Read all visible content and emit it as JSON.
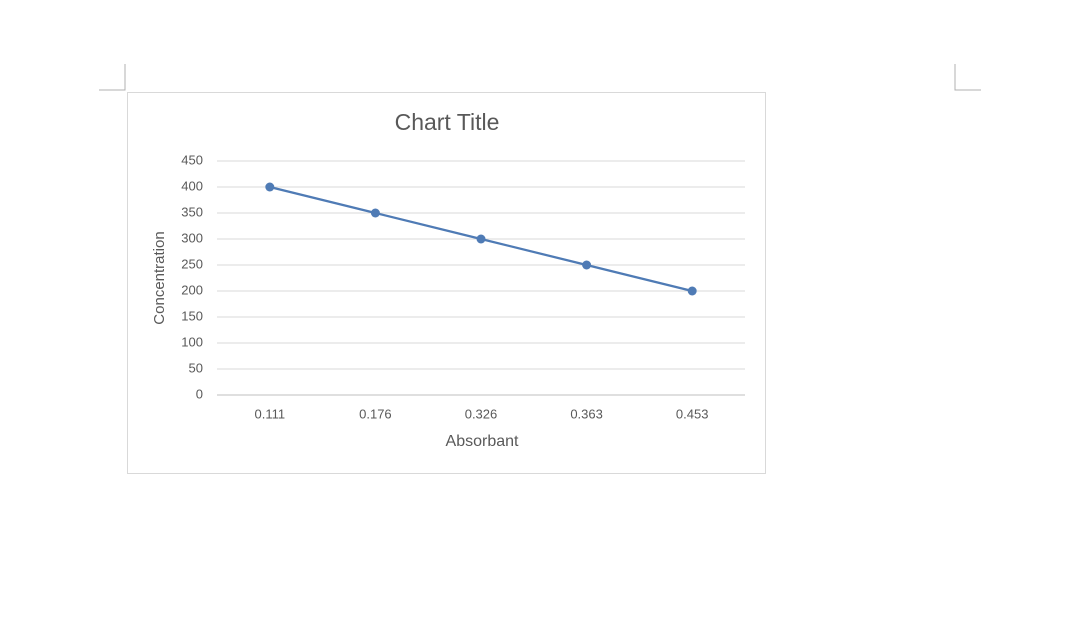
{
  "chart_data": {
    "type": "line",
    "title": "Chart Title",
    "x_label": "Absorbant",
    "y_label": "Concentration",
    "categories": [
      "0.111",
      "0.176",
      "0.326",
      "0.363",
      "0.453"
    ],
    "values": [
      400,
      350,
      300,
      250,
      200
    ],
    "color": "#4f7bb5",
    "ylim": [
      0,
      450
    ],
    "yticks": [
      0,
      50,
      100,
      150,
      200,
      250,
      300,
      350,
      400,
      450
    ],
    "grid": true
  }
}
